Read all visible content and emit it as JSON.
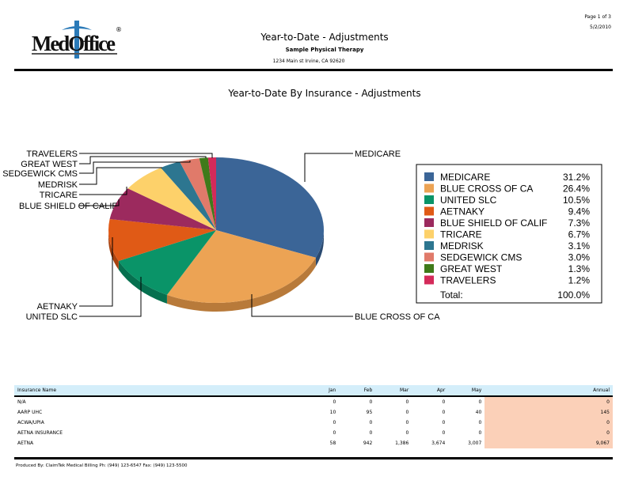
{
  "header": {
    "logo_text": "MedOffice",
    "title": "Year-to-Date - Adjustments",
    "practice": "Sample Physical Therapy",
    "address": "1234 Main st Irvine, CA 92620",
    "page": "Page 1 of 3",
    "date": "5/2/2010"
  },
  "chart_data": {
    "type": "pie",
    "title": "Year-to-Date By Insurance - Adjustments",
    "slices": [
      {
        "label": "MEDICARE",
        "value": 31.2,
        "pct": "31.2%",
        "color": "#3b6597",
        "side": "#2a4a70"
      },
      {
        "label": "BLUE CROSS OF CA",
        "value": 26.4,
        "pct": "26.4%",
        "color": "#eca354",
        "side": "#b87a3a"
      },
      {
        "label": "UNITED SLC",
        "value": 10.5,
        "pct": "10.5%",
        "color": "#0a9468",
        "side": "#06704f"
      },
      {
        "label": "AETNAKY",
        "value": 9.4,
        "pct": "9.4%",
        "color": "#e05a16",
        "side": "#a8420f"
      },
      {
        "label": "BLUE SHIELD OF CALIF",
        "value": 7.3,
        "pct": "7.3%",
        "color": "#9c2a5e",
        "side": "#731f45"
      },
      {
        "label": "TRICARE",
        "value": 6.7,
        "pct": "6.7%",
        "color": "#fdd16a",
        "side": "#c9a44f"
      },
      {
        "label": "MEDRISK",
        "value": 3.1,
        "pct": "3.1%",
        "color": "#2d7690",
        "side": "#1f566a"
      },
      {
        "label": "SEDGEWICK CMS",
        "value": 3.0,
        "pct": "3.0%",
        "color": "#e07a6a",
        "side": "#a8594d"
      },
      {
        "label": "GREAT WEST",
        "value": 1.3,
        "pct": "1.3%",
        "color": "#3f7a1a",
        "side": "#2c5912"
      },
      {
        "label": "TRAVELERS",
        "value": 1.2,
        "pct": "1.2%",
        "color": "#d42a5a",
        "side": "#9c1f42"
      }
    ],
    "total_label": "Total:",
    "total_value": "100.0%",
    "legend": "right"
  },
  "table": {
    "headers": [
      "Insurance Name",
      "Jan",
      "Feb",
      "Mar",
      "Apr",
      "May",
      "Annual"
    ],
    "rows": [
      [
        "N/A",
        "0",
        "0",
        "0",
        "0",
        "0",
        "0"
      ],
      [
        "AARP UHC",
        "10",
        "95",
        "0",
        "0",
        "40",
        "145"
      ],
      [
        "ACWA/UPIA",
        "0",
        "0",
        "0",
        "0",
        "0",
        "0"
      ],
      [
        "AETNA INSURANCE",
        "0",
        "0",
        "0",
        "0",
        "0",
        "0"
      ],
      [
        "AETNA",
        "58",
        "942",
        "1,386",
        "3,674",
        "3,007",
        "9,067"
      ]
    ]
  },
  "footer": "Produced By: ClaimTek Medical Billing   Ph: (949) 123-6547 Fax: (949) 123-5500"
}
